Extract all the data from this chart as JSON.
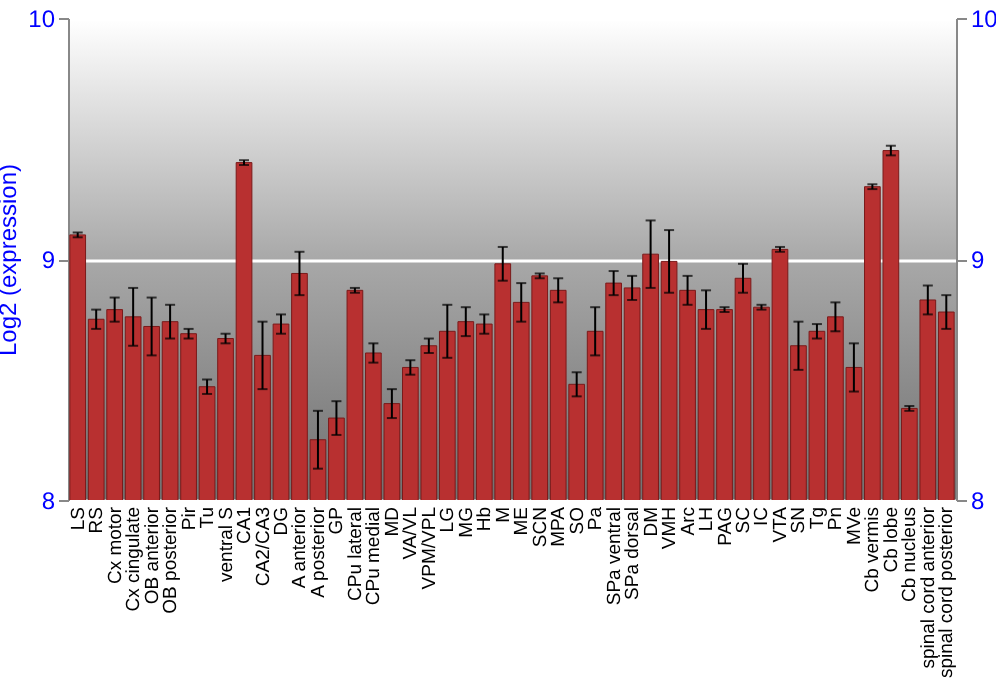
{
  "chart_data": {
    "type": "bar",
    "ylabel": "Log2 (expression)",
    "categories": [
      "LS",
      "RS",
      "Cx motor",
      "Cx cingulate",
      "OB anterior",
      "OB posterior",
      "Pir",
      "Tu",
      "ventral S",
      "CA1",
      "CA2/CA3",
      "DG",
      "A anterior",
      "A posterior",
      "GP",
      "CPu lateral",
      "CPu medial",
      "MD",
      "VA/VL",
      "VPM/VPL",
      "LG",
      "MG",
      "Hb",
      "M",
      "ME",
      "SCN",
      "MPA",
      "SO",
      "Pa",
      "SPa ventral",
      "SPa dorsal",
      "DM",
      "VMH",
      "Arc",
      "LH",
      "PAG",
      "SC",
      "IC",
      "VTA",
      "SN",
      "Tg",
      "Pn",
      "MVe",
      "Cb vermis",
      "Cb lobe",
      "Cb nucleus",
      "spinal cord anterior",
      "spinal cord posterior"
    ],
    "series": [
      {
        "color": "#b83030",
        "values": [
          9.1,
          8.75,
          8.79,
          8.76,
          8.72,
          8.74,
          8.69,
          8.47,
          8.67,
          9.4,
          8.6,
          8.73,
          8.94,
          8.25,
          8.34,
          8.87,
          8.61,
          8.4,
          8.55,
          8.64,
          8.7,
          8.74,
          8.73,
          8.98,
          8.82,
          8.93,
          8.87,
          8.48,
          8.7,
          8.9,
          8.88,
          9.02,
          8.99,
          8.87,
          8.79,
          8.79,
          8.92,
          8.8,
          9.04,
          8.64,
          8.7,
          8.76,
          8.55,
          9.3,
          9.45,
          8.38,
          8.83,
          8.78
        ],
        "errors": [
          0.01,
          0.04,
          0.05,
          0.12,
          0.12,
          0.07,
          0.02,
          0.03,
          0.02,
          0.01,
          0.14,
          0.04,
          0.09,
          0.12,
          0.07,
          0.01,
          0.04,
          0.06,
          0.03,
          0.03,
          0.11,
          0.06,
          0.04,
          0.07,
          0.08,
          0.01,
          0.05,
          0.05,
          0.1,
          0.05,
          0.05,
          0.14,
          0.13,
          0.06,
          0.08,
          0.01,
          0.06,
          0.01,
          0.01,
          0.1,
          0.03,
          0.06,
          0.1,
          0.01,
          0.02,
          0.01,
          0.06,
          0.07
        ]
      }
    ],
    "ylim": [
      8,
      10
    ],
    "yticks": [
      8,
      9,
      10
    ],
    "y2lim": [
      8,
      10
    ],
    "y2ticks": [
      8,
      9,
      10
    ],
    "grid": "y"
  }
}
